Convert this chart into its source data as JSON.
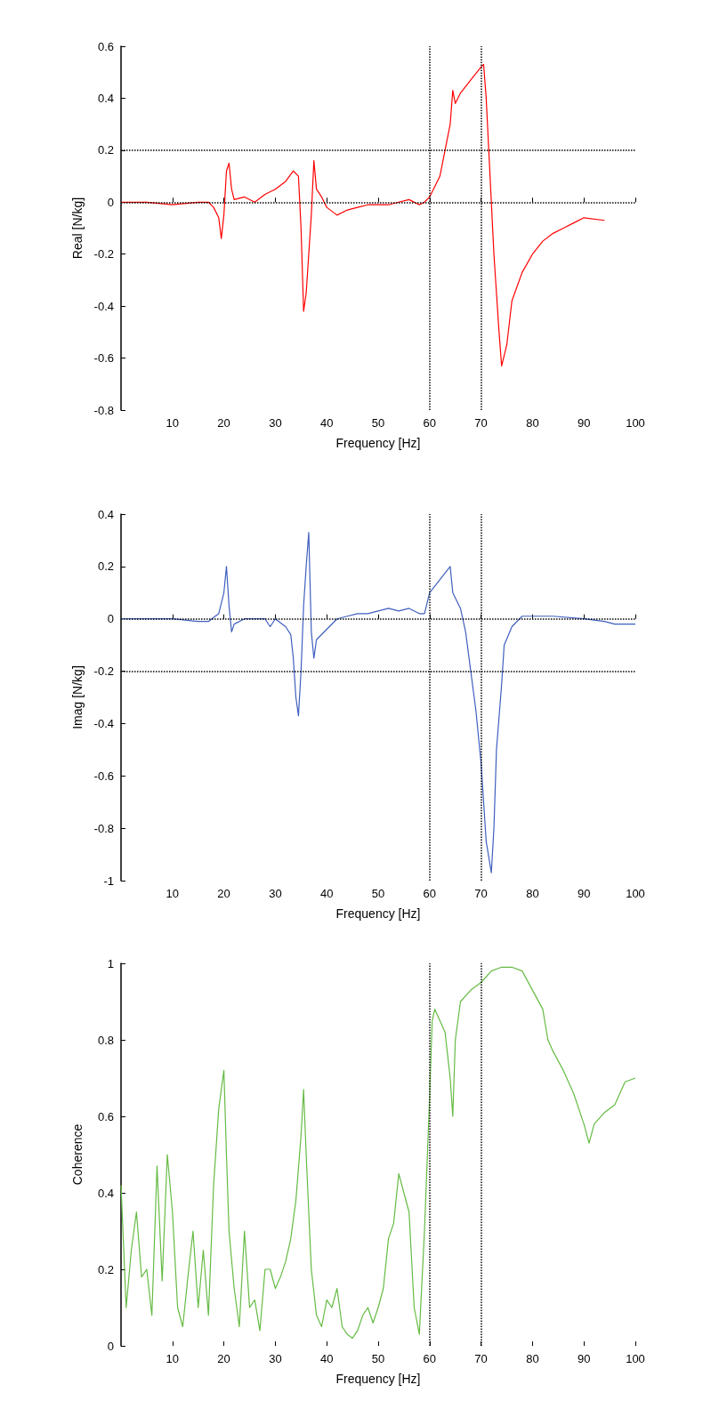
{
  "chart_data": [
    {
      "type": "line",
      "xlabel": "Frequency [Hz]",
      "ylabel": "Real [N/kg]",
      "line_style": "solid",
      "xlim": [
        0,
        100
      ],
      "xticks": [
        10,
        20,
        30,
        40,
        50,
        60,
        70,
        80,
        90,
        100
      ],
      "ylim": [
        -0.8,
        0.6
      ],
      "yticks": [
        -0.8,
        -0.6,
        -0.4,
        -0.2,
        0,
        0.2,
        0.4,
        0.6
      ],
      "ref_lines": [
        {
          "axis": "x",
          "value": 60,
          "color": "#000000",
          "line_style": "dotted"
        },
        {
          "axis": "x",
          "value": 70,
          "color": "#000000",
          "line_style": "dotted"
        },
        {
          "axis": "y",
          "value": 0,
          "color": "#000000",
          "line_style": "dotted"
        },
        {
          "axis": "y",
          "value": 0.2,
          "color": "#000000",
          "line_style": "dotted"
        }
      ],
      "series": [
        {
          "color": "#ff0000",
          "x": [
            0,
            5,
            10,
            15,
            17,
            18,
            19,
            19.5,
            20,
            20.5,
            21,
            21.5,
            22,
            24,
            26,
            28,
            30,
            32,
            33.5,
            34.5,
            35,
            35.5,
            36,
            36.5,
            37,
            37.5,
            38,
            39,
            40,
            42,
            44,
            46,
            48,
            50,
            52,
            54,
            56,
            58,
            59,
            60,
            62,
            63,
            64,
            64.5,
            65,
            66,
            68,
            70,
            70.5,
            71,
            71.5,
            72,
            72.5,
            73,
            73.5,
            74,
            75,
            76,
            78,
            80,
            82,
            84,
            86,
            88,
            90,
            94
          ],
          "values": [
            0,
            0,
            -0.01,
            0,
            0,
            -0.02,
            -0.06,
            -0.14,
            -0.05,
            0.12,
            0.15,
            0.05,
            0.01,
            0.02,
            0,
            0.03,
            0.05,
            0.08,
            0.12,
            0.1,
            -0.1,
            -0.42,
            -0.35,
            -0.2,
            -0.05,
            0.16,
            0.05,
            0.02,
            -0.02,
            -0.05,
            -0.03,
            -0.02,
            -0.01,
            -0.01,
            -0.01,
            0,
            0.01,
            -0.01,
            0,
            0.02,
            0.1,
            0.2,
            0.3,
            0.43,
            0.38,
            0.42,
            0.47,
            0.52,
            0.53,
            0.4,
            0.2,
            0,
            -0.2,
            -0.35,
            -0.5,
            -0.63,
            -0.55,
            -0.38,
            -0.27,
            -0.2,
            -0.15,
            -0.12,
            -0.1,
            -0.08,
            -0.06,
            -0.07
          ]
        }
      ]
    },
    {
      "type": "line",
      "xlabel": "Frequency [Hz]",
      "ylabel": "Imag [N/kg]",
      "line_style": "solid",
      "xlim": [
        0,
        100
      ],
      "xticks": [
        10,
        20,
        30,
        40,
        50,
        60,
        70,
        80,
        90,
        100
      ],
      "ylim": [
        -1,
        0.4
      ],
      "yticks": [
        -1,
        -0.8,
        -0.6,
        -0.4,
        -0.2,
        0,
        0.2,
        0.4
      ],
      "ref_lines": [
        {
          "axis": "x",
          "value": 60,
          "color": "#000000",
          "line_style": "dotted"
        },
        {
          "axis": "x",
          "value": 70,
          "color": "#000000",
          "line_style": "dotted"
        },
        {
          "axis": "y",
          "value": 0,
          "color": "#000000",
          "line_style": "dotted"
        },
        {
          "axis": "y",
          "value": -0.2,
          "color": "#000000",
          "line_style": "dotted"
        }
      ],
      "series": [
        {
          "color": "#3f5fbf",
          "x": [
            0,
            10,
            15,
            17,
            19,
            20,
            20.5,
            21,
            21.5,
            22,
            24,
            26,
            28,
            29,
            30,
            32,
            33,
            33.5,
            34,
            34.5,
            35,
            35.5,
            36,
            36.5,
            37,
            37.5,
            38,
            40,
            42,
            44,
            46,
            48,
            50,
            52,
            54,
            56,
            58,
            59,
            60,
            62,
            64,
            64.5,
            65,
            66,
            67,
            68,
            69,
            70,
            70.5,
            71,
            72,
            72.5,
            73,
            74,
            74.5,
            76,
            78,
            80,
            84,
            90,
            94,
            96,
            100
          ],
          "values": [
            0,
            0,
            -0.01,
            -0.01,
            0.02,
            0.1,
            0.2,
            0.05,
            -0.05,
            -0.02,
            0,
            0,
            0,
            -0.03,
            0,
            -0.03,
            -0.06,
            -0.15,
            -0.3,
            -0.37,
            -0.2,
            0.05,
            0.2,
            0.33,
            -0.05,
            -0.15,
            -0.08,
            -0.04,
            0,
            0.01,
            0.02,
            0.02,
            0.03,
            0.04,
            0.03,
            0.04,
            0.02,
            0.02,
            0.1,
            0.15,
            0.2,
            0.1,
            0.08,
            0.04,
            -0.05,
            -0.2,
            -0.35,
            -0.55,
            -0.7,
            -0.85,
            -0.97,
            -0.8,
            -0.5,
            -0.25,
            -0.1,
            -0.03,
            0.01,
            0.01,
            0.01,
            0,
            -0.01,
            -0.02,
            -0.02
          ]
        }
      ]
    },
    {
      "type": "line",
      "xlabel": "Frequency [Hz]",
      "ylabel": "Coherence",
      "line_style": "solid",
      "xlim": [
        0,
        100
      ],
      "xticks": [
        10,
        20,
        30,
        40,
        50,
        60,
        70,
        80,
        90,
        100
      ],
      "ylim": [
        0,
        1
      ],
      "yticks": [
        0,
        0.2,
        0.4,
        0.6,
        0.8,
        1
      ],
      "ref_lines": [
        {
          "axis": "x",
          "value": 60,
          "color": "#000000",
          "line_style": "dotted"
        },
        {
          "axis": "x",
          "value": 70,
          "color": "#000000",
          "line_style": "dotted"
        }
      ],
      "series": [
        {
          "color": "#66bb44",
          "x": [
            0,
            1,
            2,
            3,
            4,
            5,
            6,
            7,
            8,
            9,
            10,
            11,
            12,
            13,
            14,
            15,
            16,
            17,
            18,
            19,
            20,
            20.5,
            21,
            22,
            23,
            24,
            25,
            26,
            27,
            28,
            29,
            30,
            31,
            32,
            33,
            34,
            35,
            35.5,
            36,
            37,
            38,
            39,
            40,
            41,
            42,
            43,
            44,
            45,
            46,
            47,
            48,
            49,
            50,
            51,
            52,
            53,
            54,
            55,
            56,
            57,
            58,
            59,
            60,
            60.5,
            61,
            62,
            63,
            64,
            64.5,
            65,
            66,
            68,
            70,
            72,
            74,
            76,
            78,
            80,
            82,
            83,
            84,
            86,
            88,
            90,
            91,
            92,
            94,
            96,
            98,
            100
          ],
          "values": [
            0.42,
            0.1,
            0.25,
            0.35,
            0.18,
            0.2,
            0.08,
            0.47,
            0.17,
            0.5,
            0.35,
            0.1,
            0.05,
            0.18,
            0.3,
            0.1,
            0.25,
            0.08,
            0.42,
            0.62,
            0.72,
            0.5,
            0.3,
            0.15,
            0.05,
            0.3,
            0.1,
            0.12,
            0.04,
            0.2,
            0.2,
            0.15,
            0.18,
            0.22,
            0.28,
            0.38,
            0.55,
            0.67,
            0.5,
            0.2,
            0.08,
            0.05,
            0.12,
            0.1,
            0.15,
            0.05,
            0.03,
            0.02,
            0.04,
            0.08,
            0.1,
            0.06,
            0.1,
            0.15,
            0.28,
            0.32,
            0.45,
            0.4,
            0.35,
            0.1,
            0.03,
            0.3,
            0.65,
            0.85,
            0.88,
            0.85,
            0.82,
            0.7,
            0.6,
            0.8,
            0.9,
            0.93,
            0.95,
            0.98,
            0.99,
            0.99,
            0.98,
            0.93,
            0.88,
            0.8,
            0.77,
            0.72,
            0.66,
            0.58,
            0.53,
            0.58,
            0.61,
            0.63,
            0.69,
            0.7
          ]
        }
      ]
    }
  ]
}
